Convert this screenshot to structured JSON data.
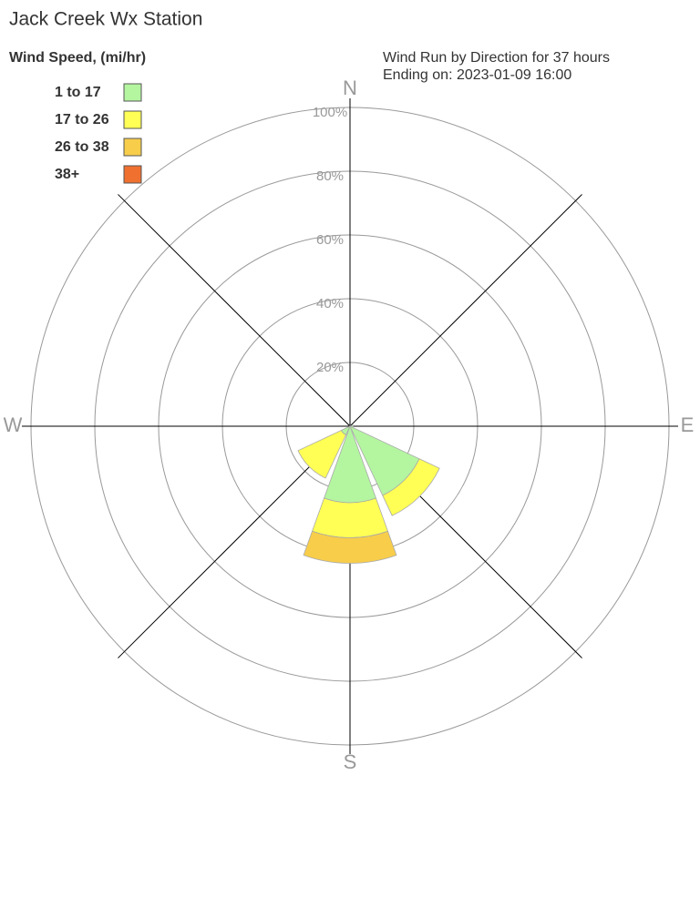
{
  "chart_data": {
    "type": "windrose",
    "title": "Jack Creek Wx Station",
    "subtitle": [
      "Wind Run by Direction for 37 hours",
      "Ending on: 2023-01-09 16:00"
    ],
    "legend_title": "Wind Speed, (mi/hr)",
    "categories": [
      "N",
      null,
      "E",
      null,
      "S",
      null,
      "W",
      null
    ],
    "series": [
      {
        "name": "1 to 17",
        "color": "#b4f5a0",
        "values": [
          0,
          0,
          1,
          24,
          24,
          3,
          0,
          0
        ]
      },
      {
        "name": "17 to 26",
        "color": "#ffff55",
        "values": [
          0,
          0,
          0,
          7,
          11,
          15,
          0,
          0
        ]
      },
      {
        "name": "26 to 38",
        "color": "#f7cd4a",
        "values": [
          0,
          0,
          0,
          0,
          8,
          0,
          0,
          0
        ]
      },
      {
        "name": "38+",
        "color": "#f07030",
        "values": [
          0,
          0,
          0,
          0,
          0,
          0,
          0,
          0
        ]
      }
    ],
    "rlim": [
      0,
      100
    ],
    "rticks": [
      {
        "value": 20,
        "label": "20%"
      },
      {
        "value": 40,
        "label": "40%"
      },
      {
        "value": 60,
        "label": "60%"
      },
      {
        "value": 80,
        "label": "80%"
      },
      {
        "value": 100,
        "label": "100%"
      }
    ],
    "grid": true
  }
}
